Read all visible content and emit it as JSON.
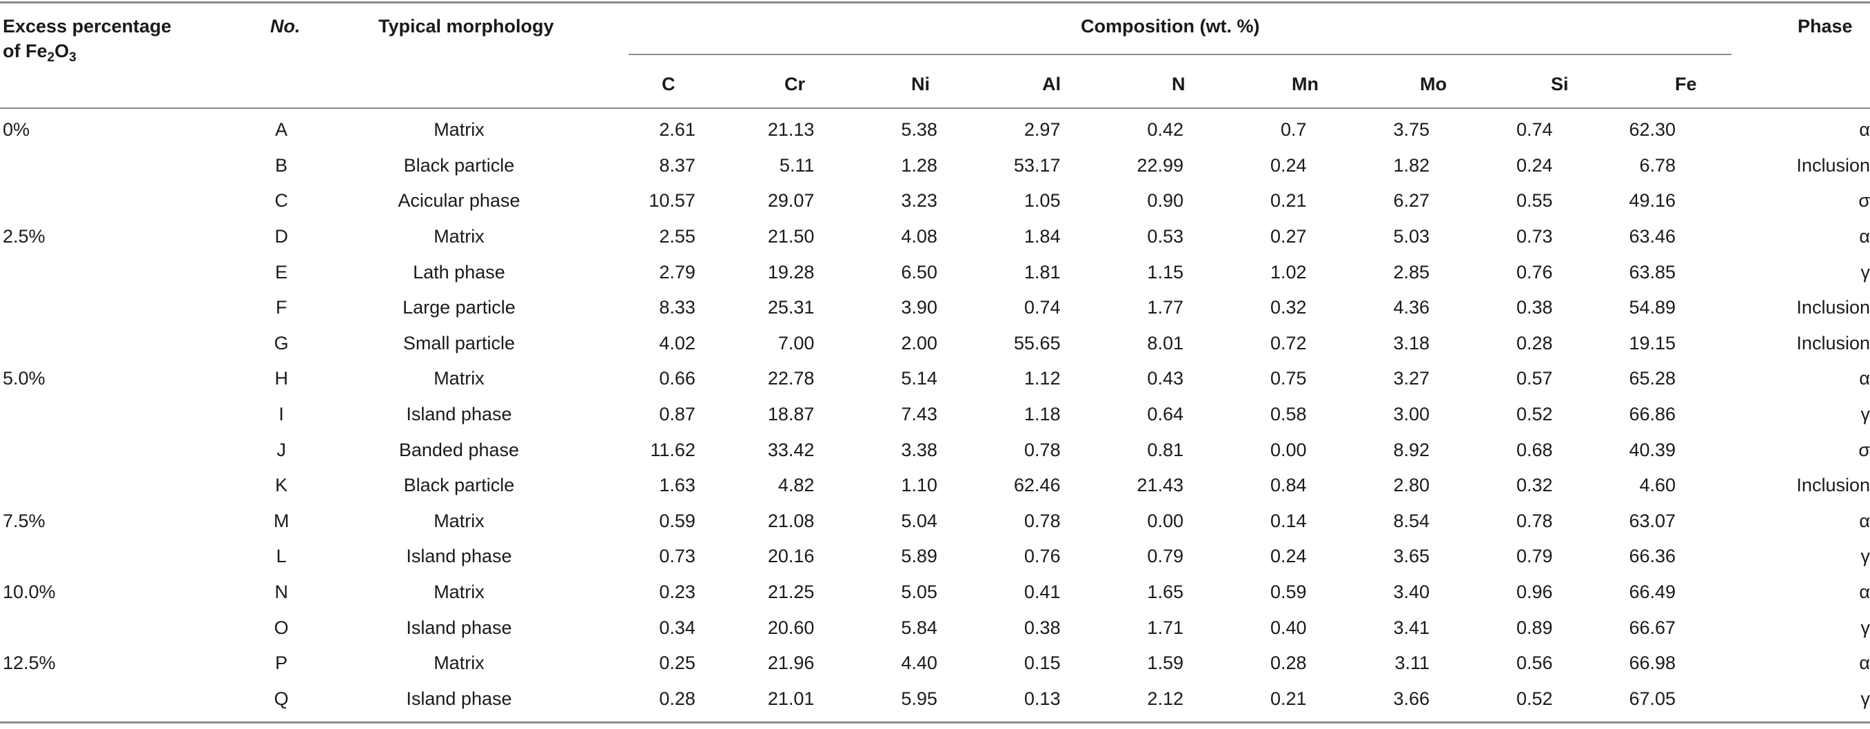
{
  "header": {
    "excess_line1": "Excess percentage",
    "excess_line2_prefix": "of Fe",
    "excess_sub1": "2",
    "excess_mid": "O",
    "excess_sub2": "3",
    "no": "No.",
    "morphology": "Typical morphology",
    "composition": "Composition (wt. %)",
    "phase": "Phase",
    "elements": [
      "C",
      "Cr",
      "Ni",
      "Al",
      "N",
      "Mn",
      "Mo",
      "Si",
      "Fe"
    ]
  },
  "rows": [
    {
      "excess": "0%",
      "no": "A",
      "morphology": "Matrix",
      "values": [
        "2.61",
        "21.13",
        "5.38",
        "2.97",
        "0.42",
        "0.7",
        "3.75",
        "0.74",
        "62.30"
      ],
      "phase": "α"
    },
    {
      "excess": "",
      "no": "B",
      "morphology": "Black particle",
      "values": [
        "8.37",
        "5.11",
        "1.28",
        "53.17",
        "22.99",
        "0.24",
        "1.82",
        "0.24",
        "6.78"
      ],
      "phase": "Inclusion"
    },
    {
      "excess": "",
      "no": "C",
      "morphology": "Acicular phase",
      "values": [
        "10.57",
        "29.07",
        "3.23",
        "1.05",
        "0.90",
        "0.21",
        "6.27",
        "0.55",
        "49.16"
      ],
      "phase": "σ"
    },
    {
      "excess": "2.5%",
      "no": "D",
      "morphology": "Matrix",
      "values": [
        "2.55",
        "21.50",
        "4.08",
        "1.84",
        "0.53",
        "0.27",
        "5.03",
        "0.73",
        "63.46"
      ],
      "phase": "α"
    },
    {
      "excess": "",
      "no": "E",
      "morphology": "Lath phase",
      "values": [
        "2.79",
        "19.28",
        "6.50",
        "1.81",
        "1.15",
        "1.02",
        "2.85",
        "0.76",
        "63.85"
      ],
      "phase": "γ"
    },
    {
      "excess": "",
      "no": "F",
      "morphology": "Large particle",
      "values": [
        "8.33",
        "25.31",
        "3.90",
        "0.74",
        "1.77",
        "0.32",
        "4.36",
        "0.38",
        "54.89"
      ],
      "phase": "Inclusion"
    },
    {
      "excess": "",
      "no": "G",
      "morphology": "Small particle",
      "values": [
        "4.02",
        "7.00",
        "2.00",
        "55.65",
        "8.01",
        "0.72",
        "3.18",
        "0.28",
        "19.15"
      ],
      "phase": "Inclusion"
    },
    {
      "excess": "5.0%",
      "no": "H",
      "morphology": "Matrix",
      "values": [
        "0.66",
        "22.78",
        "5.14",
        "1.12",
        "0.43",
        "0.75",
        "3.27",
        "0.57",
        "65.28"
      ],
      "phase": "α"
    },
    {
      "excess": "",
      "no": "I",
      "morphology": "Island phase",
      "values": [
        "0.87",
        "18.87",
        "7.43",
        "1.18",
        "0.64",
        "0.58",
        "3.00",
        "0.52",
        "66.86"
      ],
      "phase": "γ"
    },
    {
      "excess": "",
      "no": "J",
      "morphology": "Banded phase",
      "values": [
        "11.62",
        "33.42",
        "3.38",
        "0.78",
        "0.81",
        "0.00",
        "8.92",
        "0.68",
        "40.39"
      ],
      "phase": "σ"
    },
    {
      "excess": "",
      "no": "K",
      "morphology": "Black particle",
      "values": [
        "1.63",
        "4.82",
        "1.10",
        "62.46",
        "21.43",
        "0.84",
        "2.80",
        "0.32",
        "4.60"
      ],
      "phase": "Inclusion"
    },
    {
      "excess": "7.5%",
      "no": "M",
      "morphology": "Matrix",
      "values": [
        "0.59",
        "21.08",
        "5.04",
        "0.78",
        "0.00",
        "0.14",
        "8.54",
        "0.78",
        "63.07"
      ],
      "phase": "α"
    },
    {
      "excess": "",
      "no": "L",
      "morphology": "Island phase",
      "values": [
        "0.73",
        "20.16",
        "5.89",
        "0.76",
        "0.79",
        "0.24",
        "3.65",
        "0.79",
        "66.36"
      ],
      "phase": "γ"
    },
    {
      "excess": "10.0%",
      "no": "N",
      "morphology": "Matrix",
      "values": [
        "0.23",
        "21.25",
        "5.05",
        "0.41",
        "1.65",
        "0.59",
        "3.40",
        "0.96",
        "66.49"
      ],
      "phase": "α"
    },
    {
      "excess": "",
      "no": "O",
      "morphology": "Island phase",
      "values": [
        "0.34",
        "20.60",
        "5.84",
        "0.38",
        "1.71",
        "0.40",
        "3.41",
        "0.89",
        "66.67"
      ],
      "phase": "γ"
    },
    {
      "excess": "12.5%",
      "no": "P",
      "morphology": "Matrix",
      "values": [
        "0.25",
        "21.96",
        "4.40",
        "0.15",
        "1.59",
        "0.28",
        "3.11",
        "0.56",
        "66.98"
      ],
      "phase": "α"
    },
    {
      "excess": "",
      "no": "Q",
      "morphology": "Island phase",
      "values": [
        "0.28",
        "21.01",
        "5.95",
        "0.13",
        "2.12",
        "0.21",
        "3.66",
        "0.52",
        "67.05"
      ],
      "phase": "γ"
    }
  ]
}
